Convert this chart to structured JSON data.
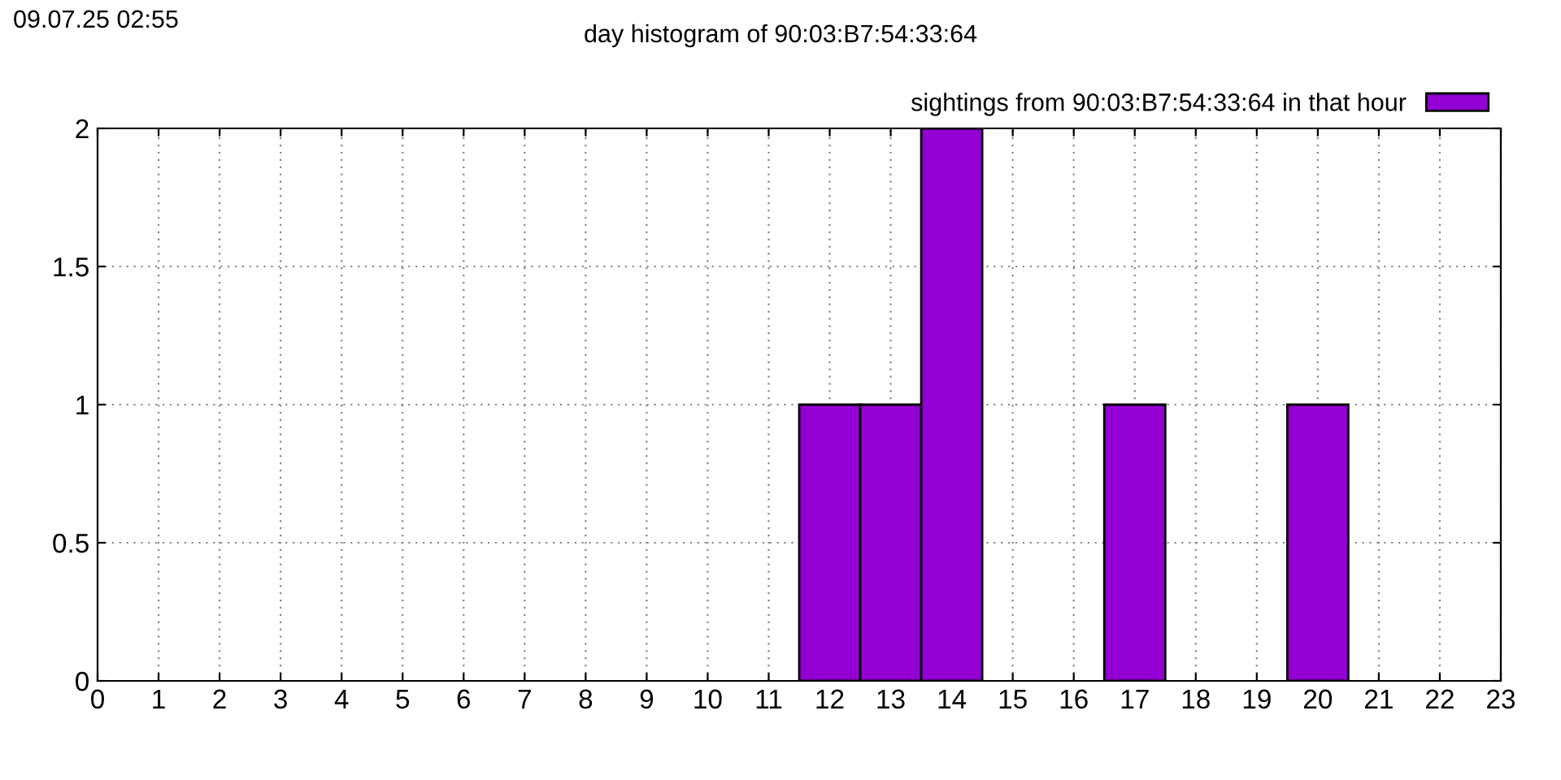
{
  "chart_data": {
    "type": "bar",
    "title": "day histogram of 90:03:B7:54:33:64",
    "annotations": [
      "09.07.25 02:55"
    ],
    "x": [
      0,
      1,
      2,
      3,
      4,
      5,
      6,
      7,
      8,
      9,
      10,
      11,
      12,
      13,
      14,
      15,
      16,
      17,
      18,
      19,
      20,
      21,
      22
    ],
    "series": [
      {
        "name": "sightings from 90:03:B7:54:33:64 in that hour",
        "color": "#9400d3",
        "values": [
          0,
          0,
          0,
          0,
          0,
          0,
          0,
          0,
          0,
          0,
          0,
          0,
          1,
          1,
          2,
          0,
          0,
          1,
          0,
          0,
          1,
          0,
          0
        ]
      }
    ],
    "xlim": [
      0,
      23
    ],
    "xticks": [
      0,
      1,
      2,
      3,
      4,
      5,
      6,
      7,
      8,
      9,
      10,
      11,
      12,
      13,
      14,
      15,
      16,
      17,
      18,
      19,
      20,
      21,
      22,
      23
    ],
    "ylim": [
      0,
      2
    ],
    "yticks": [
      0,
      0.5,
      1,
      1.5,
      2
    ],
    "grid": true,
    "legend": "top right"
  }
}
